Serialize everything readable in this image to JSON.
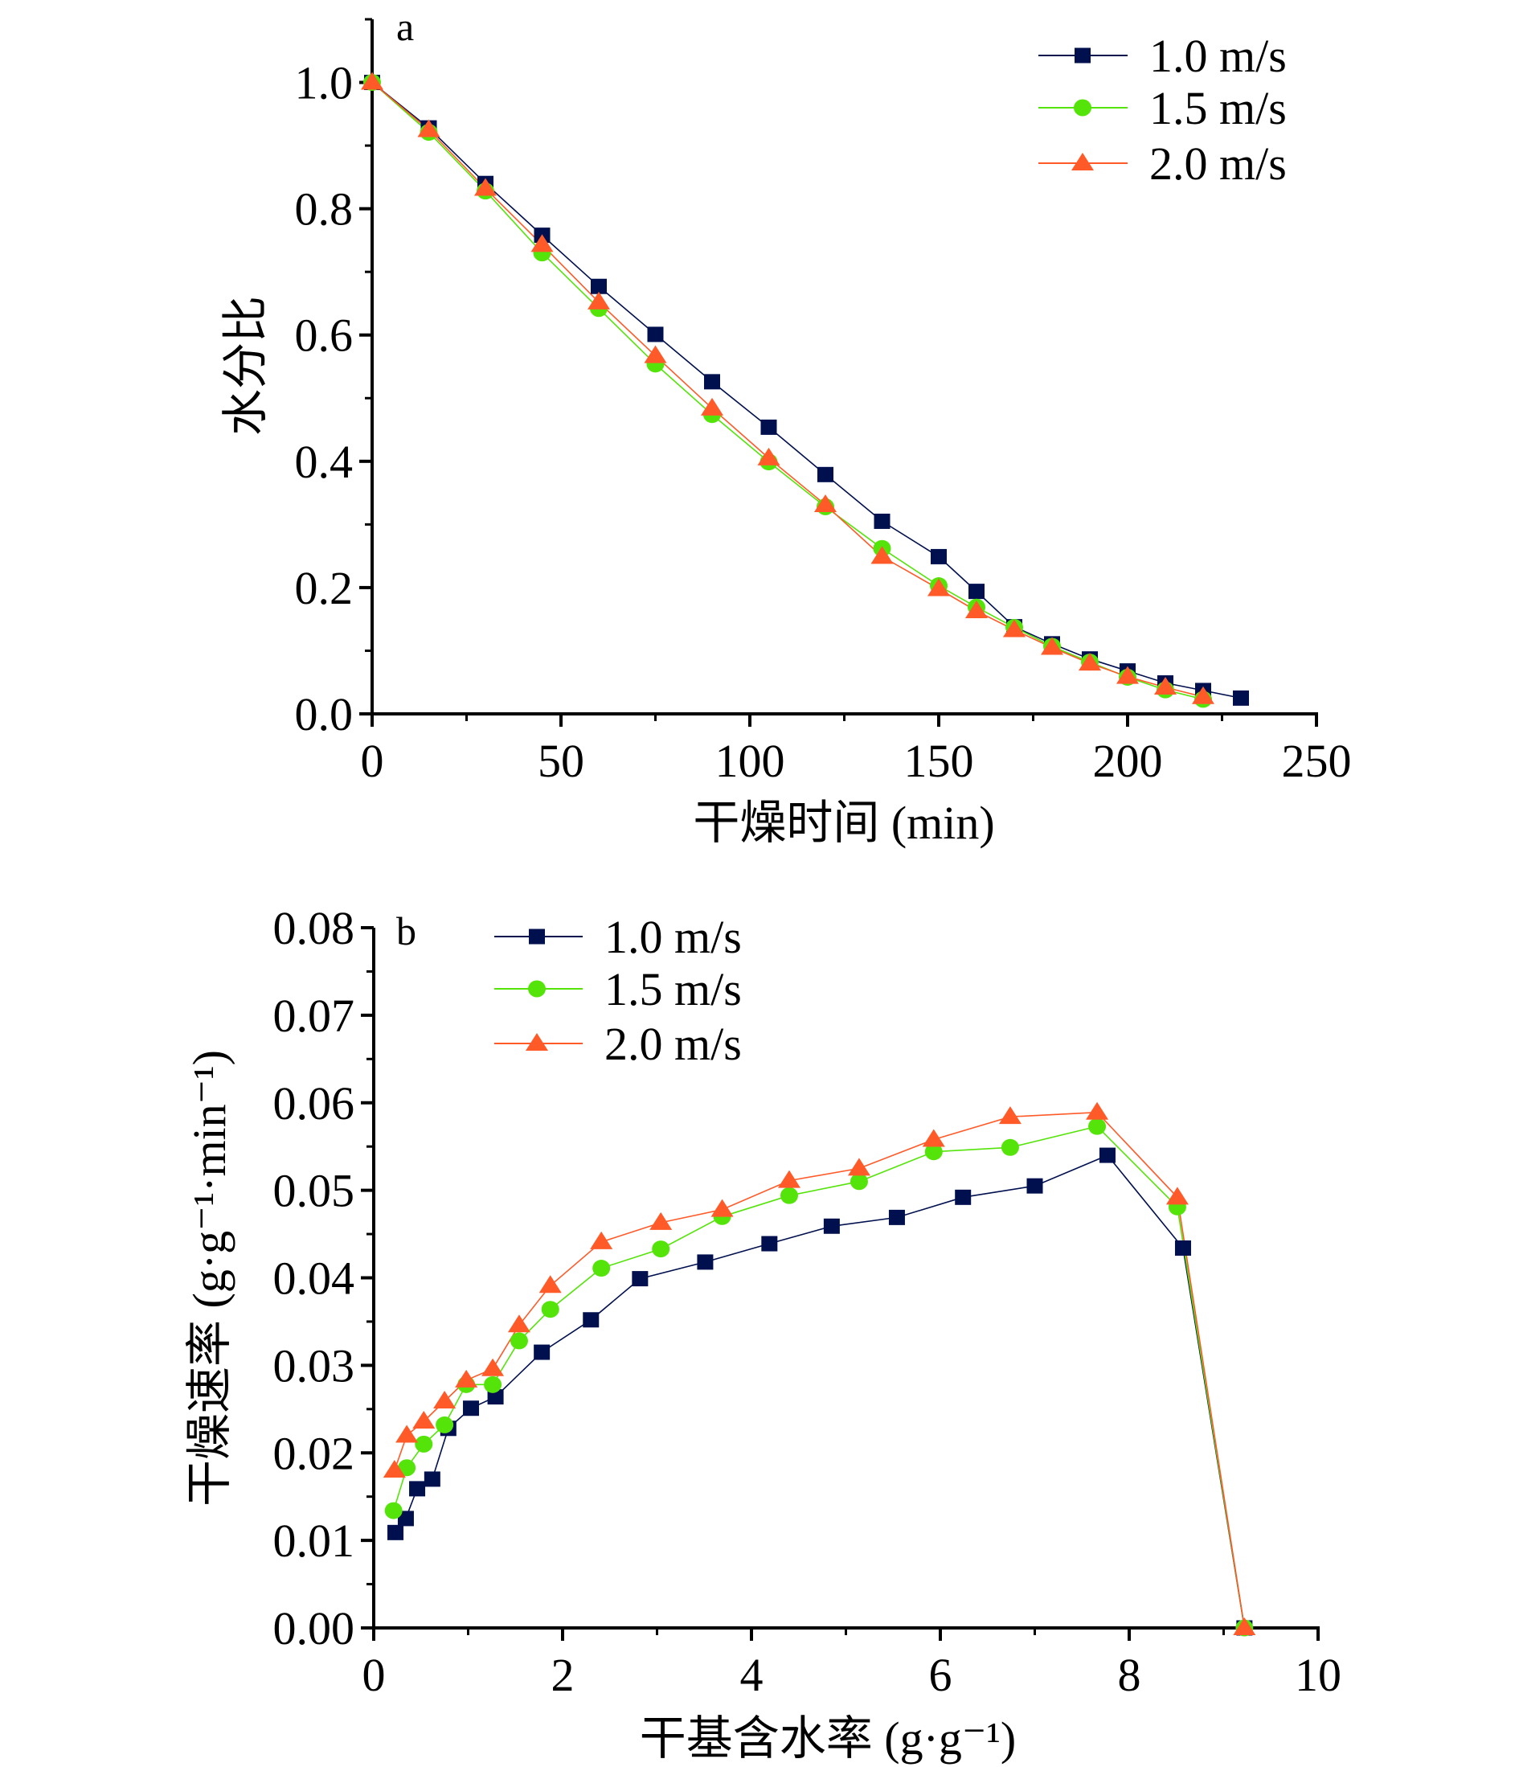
{
  "colors": {
    "series_1": "#00104F",
    "series_2": "#55E40A",
    "series_3": "#FF5A28",
    "axis": "#000000"
  },
  "chart_data": [
    {
      "id": "a",
      "type": "line",
      "panel_label": "a",
      "title": "",
      "xlabel": "干燥时间 (min)",
      "ylabel": "水分比",
      "xlim": [
        0,
        250
      ],
      "ylim": [
        0,
        1.1
      ],
      "xticks": [
        0,
        50,
        100,
        150,
        200,
        250
      ],
      "xtick_labels": [
        "0",
        "50",
        "100",
        "150",
        "200",
        "250"
      ],
      "yticks": [
        0.0,
        0.2,
        0.4,
        0.6,
        0.8,
        1.0
      ],
      "ytick_labels": [
        "0.0",
        "0.2",
        "0.4",
        "0.6",
        "0.8",
        "1.0"
      ],
      "x_minor_step": 25,
      "y_minor_step": 0.1,
      "grid": false,
      "legend": "top-right",
      "series": [
        {
          "name": "1.0 m/s",
          "marker": "square",
          "color_key": "series_1",
          "x": [
            0,
            15,
            30,
            45,
            60,
            75,
            90,
            105,
            120,
            135,
            150,
            160,
            170,
            180,
            190,
            200,
            210,
            220,
            230
          ],
          "y": [
            1.0,
            0.928,
            0.84,
            0.758,
            0.677,
            0.601,
            0.526,
            0.454,
            0.379,
            0.305,
            0.249,
            0.194,
            0.138,
            0.111,
            0.087,
            0.068,
            0.049,
            0.037,
            0.025
          ]
        },
        {
          "name": "1.5 m/s",
          "marker": "circle",
          "color_key": "series_2",
          "x": [
            0,
            15,
            30,
            45,
            60,
            75,
            90,
            105,
            120,
            135,
            150,
            160,
            170,
            180,
            190,
            200,
            210,
            220
          ],
          "y": [
            1.0,
            0.921,
            0.828,
            0.73,
            0.642,
            0.554,
            0.474,
            0.399,
            0.328,
            0.262,
            0.203,
            0.169,
            0.137,
            0.107,
            0.082,
            0.058,
            0.038,
            0.023
          ]
        },
        {
          "name": "2.0 m/s",
          "marker": "triangle",
          "color_key": "series_3",
          "x": [
            0,
            15,
            30,
            45,
            60,
            75,
            90,
            105,
            120,
            135,
            150,
            160,
            170,
            180,
            190,
            200,
            210,
            220
          ],
          "y": [
            1.0,
            0.925,
            0.832,
            0.743,
            0.652,
            0.567,
            0.484,
            0.405,
            0.331,
            0.249,
            0.198,
            0.163,
            0.133,
            0.105,
            0.08,
            0.059,
            0.042,
            0.027
          ]
        }
      ]
    },
    {
      "id": "b",
      "type": "line",
      "panel_label": "b",
      "title": "",
      "xlabel": "干基含水率 (g·g⁻¹)",
      "ylabel": "干燥速率 (g·g⁻¹·min⁻¹)",
      "xlim": [
        0,
        10
      ],
      "ylim": [
        0,
        0.08
      ],
      "xticks": [
        0,
        2,
        4,
        6,
        8,
        10
      ],
      "xtick_labels": [
        "0",
        "2",
        "4",
        "6",
        "8",
        "10"
      ],
      "yticks": [
        0.0,
        0.01,
        0.02,
        0.03,
        0.04,
        0.05,
        0.06,
        0.07,
        0.08
      ],
      "ytick_labels": [
        "0.00",
        "0.01",
        "0.02",
        "0.03",
        "0.04",
        "0.05",
        "0.06",
        "0.07",
        "0.08"
      ],
      "x_minor_step": 1,
      "y_minor_step": 0.005,
      "grid": false,
      "legend": "top-left",
      "series": [
        {
          "name": "1.0 m/s",
          "marker": "square",
          "color_key": "series_1",
          "x": [
            0.23,
            0.34,
            0.46,
            0.62,
            0.79,
            1.03,
            1.29,
            1.78,
            2.3,
            2.82,
            3.51,
            4.19,
            4.85,
            5.54,
            6.24,
            7.0,
            7.77,
            8.57,
            9.22
          ],
          "y": [
            0.0109,
            0.0125,
            0.0159,
            0.017,
            0.0228,
            0.0251,
            0.0264,
            0.0315,
            0.0352,
            0.0399,
            0.0418,
            0.0439,
            0.0459,
            0.0469,
            0.0492,
            0.0505,
            0.054,
            0.0434,
            0.0
          ]
        },
        {
          "name": "1.5 m/s",
          "marker": "circle",
          "color_key": "series_2",
          "x": [
            0.21,
            0.35,
            0.53,
            0.75,
            0.98,
            1.26,
            1.54,
            1.87,
            2.41,
            3.04,
            3.69,
            4.4,
            5.14,
            5.93,
            6.74,
            7.66,
            8.51,
            9.22
          ],
          "y": [
            0.0134,
            0.0183,
            0.021,
            0.0232,
            0.0278,
            0.0278,
            0.0328,
            0.0364,
            0.0411,
            0.0433,
            0.047,
            0.0494,
            0.051,
            0.0544,
            0.0549,
            0.0573,
            0.0481,
            0.0
          ]
        },
        {
          "name": "2.0 m/s",
          "marker": "triangle",
          "color_key": "series_3",
          "x": [
            0.22,
            0.35,
            0.53,
            0.75,
            0.98,
            1.26,
            1.54,
            1.87,
            2.41,
            3.04,
            3.69,
            4.4,
            5.14,
            5.93,
            6.74,
            7.66,
            8.51,
            9.22
          ],
          "y": [
            0.018,
            0.022,
            0.0236,
            0.0259,
            0.0283,
            0.0296,
            0.0346,
            0.0391,
            0.0441,
            0.0463,
            0.0478,
            0.0511,
            0.0525,
            0.0558,
            0.0584,
            0.0589,
            0.0492,
            0.0
          ]
        }
      ]
    }
  ]
}
